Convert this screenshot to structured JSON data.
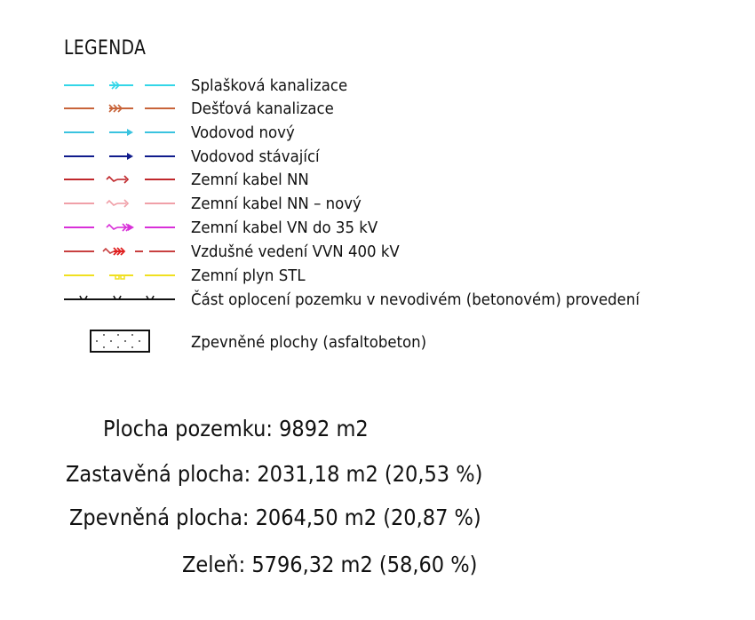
{
  "legend": {
    "title": "LEGENDA",
    "items": [
      {
        "label": "Splašková kanalizace",
        "color": "#33d6e8",
        "symbol": "double-chevron"
      },
      {
        "label": "Dešťová kanalizace",
        "color": "#c8643a",
        "symbol": "triple-chevron"
      },
      {
        "label": "Vodovod nový",
        "color": "#3ac3df",
        "symbol": "arrow"
      },
      {
        "label": "Vodovod stávající",
        "color": "#101c8c",
        "symbol": "arrow"
      },
      {
        "label": "Zemní kabel NN",
        "color": "#c0282c",
        "symbol": "zigzag-arrow"
      },
      {
        "label": "Zemní kabel NN – nový",
        "color": "#f0a0a8",
        "symbol": "zigzag-arrow"
      },
      {
        "label": "Zemní kabel VN do 35 kV",
        "color": "#d830d8",
        "symbol": "zigzag-double-arrow"
      },
      {
        "label": "Vzdušné vedení VVN 400 kV",
        "color": "#c84040",
        "symbol": "zigzag-triple-arrow"
      },
      {
        "label": "Zemní plyn STL",
        "color": "#f0e020",
        "symbol": "comb"
      },
      {
        "label": "Část oplocení pozemku v nevodivém (betonovém) provedení",
        "color": "#111111",
        "symbol": "fence-ticks"
      }
    ],
    "area_item": {
      "label": "Zpevněné plochy (asfaltobeton)",
      "symbol": "dotted-rectangle"
    }
  },
  "stats": {
    "plot_area": "Plocha pozemku: 9892 m2",
    "built_area": "Zastavěná plocha: 2031,18 m2 (20,53 %)",
    "paved_area": "Zpevněná plocha: 2064,50 m2 (20,87 %)",
    "green_area": "Zeleň: 5796,32 m2 (58,60 %)"
  }
}
